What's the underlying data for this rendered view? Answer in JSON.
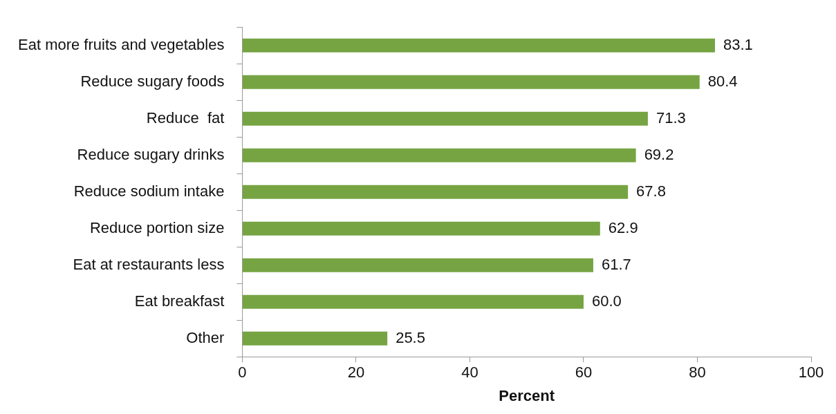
{
  "chart_data": {
    "type": "bar",
    "orientation": "horizontal",
    "xlabel": "Percent",
    "categories": [
      "Eat more fruits and vegetables",
      "Reduce sugary foods",
      "Reduce  fat",
      "Reduce sugary drinks",
      "Reduce sodium intake",
      "Reduce portion size",
      "Eat at restaurants less",
      "Eat breakfast",
      "Other"
    ],
    "values": [
      83.1,
      80.4,
      71.3,
      69.2,
      67.8,
      62.9,
      61.7,
      60.0,
      25.5
    ],
    "value_labels": [
      "83.1",
      "80.4",
      "71.3",
      "69.2",
      "67.8",
      "62.9",
      "61.7",
      "60.0",
      "25.5"
    ],
    "color": "#76a443",
    "xlim": [
      0,
      100
    ],
    "xticks": [
      0,
      20,
      40,
      60,
      80,
      100
    ],
    "grid": false,
    "legend": false
  }
}
